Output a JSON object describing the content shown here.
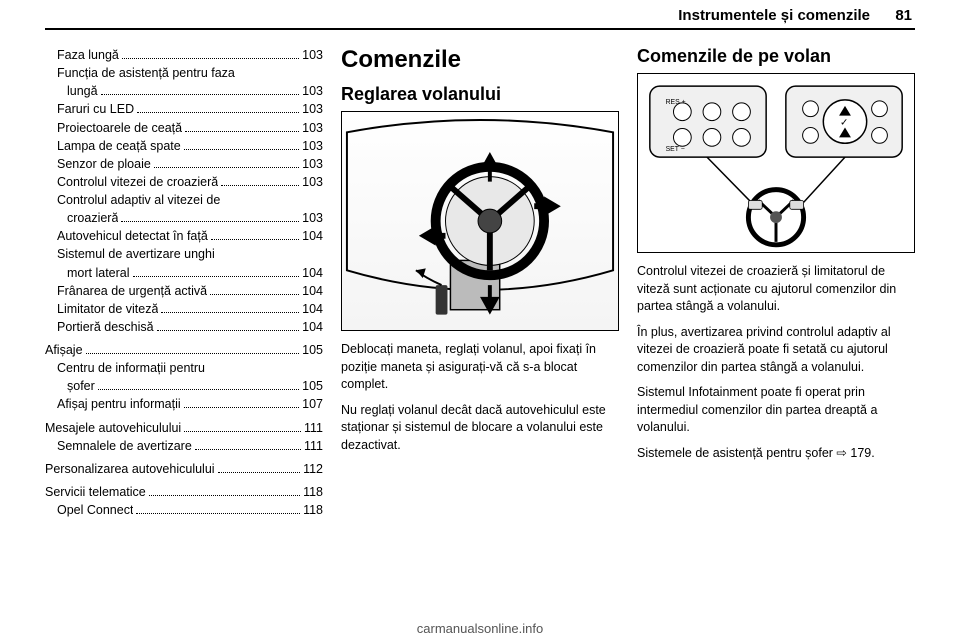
{
  "header": {
    "title": "Instrumentele și comenzile",
    "pageNumber": "81"
  },
  "toc": [
    {
      "label": "Faza lungă",
      "page": "103",
      "indent": 1
    },
    {
      "label": "Funcția de asistență pentru faza",
      "page": "",
      "indent": 1,
      "cont": true
    },
    {
      "label": "lungă",
      "page": "103",
      "indent": 2
    },
    {
      "label": "Faruri cu LED",
      "page": "103",
      "indent": 1
    },
    {
      "label": "Proiectoarele de ceață",
      "page": "103",
      "indent": 1
    },
    {
      "label": "Lampa de ceață spate",
      "page": "103",
      "indent": 1
    },
    {
      "label": "Senzor de ploaie",
      "page": "103",
      "indent": 1
    },
    {
      "label": "Controlul vitezei de croazieră",
      "page": "103",
      "indent": 1
    },
    {
      "label": "Controlul adaptiv al vitezei de",
      "page": "",
      "indent": 1,
      "cont": true
    },
    {
      "label": "croazieră",
      "page": "103",
      "indent": 2
    },
    {
      "label": "Autovehicul detectat în față",
      "page": "104",
      "indent": 1
    },
    {
      "label": "Sistemul de avertizare unghi",
      "page": "",
      "indent": 1,
      "cont": true
    },
    {
      "label": "mort lateral",
      "page": "104",
      "indent": 2
    },
    {
      "label": "Frânarea de urgență activă",
      "page": "104",
      "indent": 1
    },
    {
      "label": "Limitator de viteză",
      "page": "104",
      "indent": 1
    },
    {
      "label": "Portieră deschisă",
      "page": "104",
      "indent": 1
    },
    {
      "label": "Afișaje",
      "page": "105",
      "indent": 0,
      "section": true
    },
    {
      "label": "Centru de informații pentru",
      "page": "",
      "indent": 1,
      "cont": true
    },
    {
      "label": "șofer",
      "page": "105",
      "indent": 2
    },
    {
      "label": "Afișaj pentru informații",
      "page": "107",
      "indent": 1
    },
    {
      "label": "Mesajele autovehiculului",
      "page": "111",
      "indent": 0,
      "section": true
    },
    {
      "label": "Semnalele de avertizare",
      "page": "111",
      "indent": 1
    },
    {
      "label": "Personalizarea autovehiculului",
      "page": "112",
      "indent": 0,
      "section": true
    },
    {
      "label": "Servicii telematice",
      "page": "118",
      "indent": 0,
      "section": true
    },
    {
      "label": "Opel Connect",
      "page": "118",
      "indent": 1
    }
  ],
  "col2": {
    "heading1": "Comenzile",
    "heading2": "Reglarea volanului",
    "para1": "Deblocați maneta, reglați volanul, apoi fixați în poziție maneta și asigurați-vă că s-a blocat complet.",
    "para2": "Nu reglați volanul decât dacă autovehiculul este staționar și sistemul de blocare a volanului este dezactivat."
  },
  "col3": {
    "heading2": "Comenzile de pe volan",
    "para1": "Controlul vitezei de croazieră și limitatorul de viteză sunt acționate cu ajutorul comenzilor din partea stângă a volanului.",
    "para2": "În plus, avertizarea privind controlul adaptiv al vitezei de croazieră poate fi setată cu ajutorul comenzilor din partea stângă a volanului.",
    "para3": "Sistemul Infotainment poate fi operat prin intermediul comenzilor din partea dreaptă a volanului.",
    "para4": "Sistemele de asistență pentru șofer ⇨ 179."
  },
  "footer": {
    "url": "carmanualsonline.info"
  },
  "colors": {
    "text": "#000000",
    "footer": "#555555",
    "line": "#000000",
    "background": "#ffffff"
  }
}
